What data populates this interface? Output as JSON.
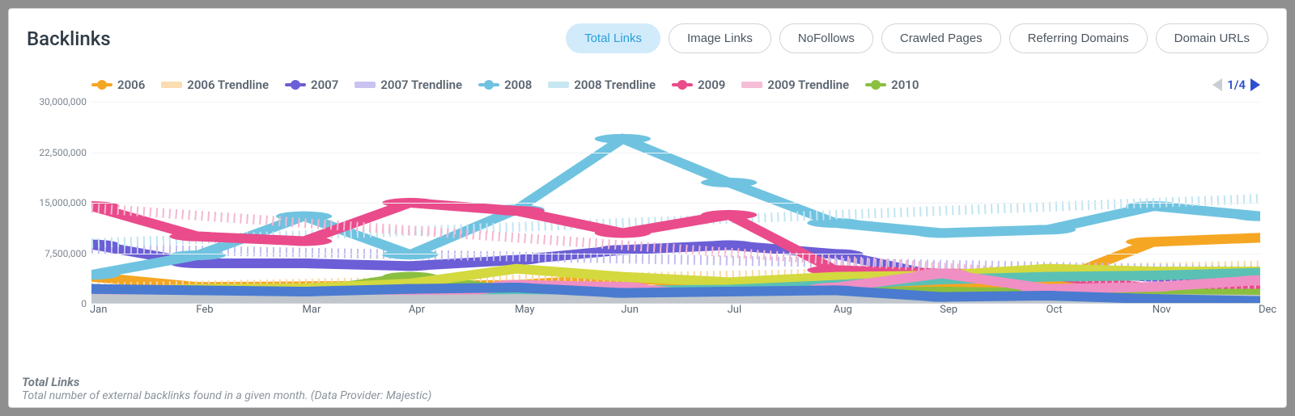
{
  "title": "Backlinks",
  "tabs": [
    {
      "label": "Total Links",
      "active": true
    },
    {
      "label": "Image Links",
      "active": false
    },
    {
      "label": "NoFollows",
      "active": false
    },
    {
      "label": "Crawled Pages",
      "active": false
    },
    {
      "label": "Referring Domains",
      "active": false
    },
    {
      "label": "Domain URLs",
      "active": false
    }
  ],
  "pager": {
    "label": "1/4"
  },
  "footer": {
    "title": "Total Links",
    "desc": "Total number of external backlinks found in a given month. (Data Provider: Majestic)"
  },
  "chart": {
    "type": "line",
    "background_color": "#ffffff",
    "grid_color": "#f0f2f4",
    "axis_color": "#d0d4d9",
    "label_fontsize": 13,
    "tick_fontsize": 12,
    "line_width": 3,
    "marker_radius": 6,
    "x_categories": [
      "Jan",
      "Feb",
      "Mar",
      "Apr",
      "May",
      "Jun",
      "Jul",
      "Aug",
      "Sep",
      "Oct",
      "Nov",
      "Dec"
    ],
    "y_ticks": [
      0,
      7500000,
      15000000,
      22500000,
      30000000
    ],
    "y_tick_labels": [
      "0",
      "7,500,000",
      "15,000,000",
      "22,500,000",
      "30,000,000"
    ],
    "ylim": [
      0,
      30000000
    ],
    "legend": [
      {
        "label": "2006",
        "color": "#f5a623",
        "style": "solid",
        "marker": true
      },
      {
        "label": "2006 Trendline",
        "color": "#f9d9a8",
        "style": "dotted",
        "marker": false
      },
      {
        "label": "2007",
        "color": "#6b5ed6",
        "style": "solid",
        "marker": true
      },
      {
        "label": "2007 Trendline",
        "color": "#c3bdf0",
        "style": "dotted",
        "marker": false
      },
      {
        "label": "2008",
        "color": "#6fc3e0",
        "style": "solid",
        "marker": true
      },
      {
        "label": "2008 Trendline",
        "color": "#c1e5f2",
        "style": "dotted",
        "marker": false
      },
      {
        "label": "2009",
        "color": "#ea4b8b",
        "style": "solid",
        "marker": true
      },
      {
        "label": "2009 Trendline",
        "color": "#f4b6d1",
        "style": "dotted",
        "marker": false
      },
      {
        "label": "2010",
        "color": "#8bbf3f",
        "style": "solid",
        "marker": true
      }
    ],
    "series": [
      {
        "name": "2006",
        "color": "#f5a623",
        "style": "solid",
        "marker": true,
        "values": [
          4000000,
          2500000,
          2600000,
          2700000,
          2800000,
          3800000,
          2900000,
          2500000,
          2700000,
          3000000,
          9200000,
          9800000
        ]
      },
      {
        "name": "2006 Trendline",
        "color": "#f9d9a8",
        "style": "dotted",
        "marker": false,
        "values": [
          2400000,
          2700000,
          3000000,
          3300000,
          3600000,
          3900000,
          4200000,
          4500000,
          4800000,
          5100000,
          5400000,
          5700000
        ]
      },
      {
        "name": "2007",
        "color": "#6b5ed6",
        "style": "solid",
        "marker": true,
        "values": [
          8800000,
          6000000,
          6000000,
          5600000,
          6500000,
          8000000,
          8700000,
          7400000,
          4000000,
          4800000,
          4000000,
          4600000
        ]
      },
      {
        "name": "2007 Trendline",
        "color": "#c3bdf0",
        "style": "dotted",
        "marker": false,
        "values": [
          8200000,
          7900000,
          7600000,
          7300000,
          7000000,
          6700000,
          6400000,
          6100000,
          5800000,
          5500000,
          5200000,
          4900000
        ]
      },
      {
        "name": "2008",
        "color": "#6fc3e0",
        "style": "solid",
        "marker": true,
        "values": [
          4300000,
          7200000,
          13000000,
          7300000,
          14000000,
          24500000,
          18000000,
          12000000,
          10500000,
          11000000,
          14500000,
          13000000
        ]
      },
      {
        "name": "2008 Trendline",
        "color": "#c1e5f2",
        "style": "dotted",
        "marker": false,
        "values": [
          9000000,
          9600000,
          10200000,
          10800000,
          11400000,
          12000000,
          12600000,
          13200000,
          13800000,
          14400000,
          15000000,
          15600000
        ]
      },
      {
        "name": "2009",
        "color": "#ea4b8b",
        "style": "solid",
        "marker": true,
        "values": [
          14500000,
          10000000,
          9300000,
          15000000,
          13800000,
          10500000,
          13200000,
          5000000,
          4500000,
          4300000,
          2200000,
          2000000
        ]
      },
      {
        "name": "2009 Trendline",
        "color": "#f4b6d1",
        "style": "dotted",
        "marker": false,
        "values": [
          14200000,
          13100000,
          12000000,
          10900000,
          9800000,
          8700000,
          7600000,
          6500000,
          5400000,
          4300000,
          3200000,
          2100000
        ]
      },
      {
        "name": "2010",
        "color": "#8bbf3f",
        "style": "solid",
        "marker": true,
        "values": [
          1400000,
          1500000,
          1600000,
          4000000,
          1800000,
          1700000,
          1600000,
          1700000,
          1800000,
          1600000,
          1500000,
          1500000
        ]
      },
      {
        "name": "extra-yellowgreen",
        "color": "#d4d93f",
        "style": "solid",
        "marker": false,
        "values": [
          1800000,
          2200000,
          2300000,
          3000000,
          5200000,
          4000000,
          3200000,
          4000000,
          4200000,
          5200000,
          4800000,
          4800000
        ]
      },
      {
        "name": "extra-teal",
        "color": "#5bc1b4",
        "style": "solid",
        "marker": false,
        "values": [
          1200000,
          1400000,
          1500000,
          1700000,
          1800000,
          2000000,
          2100000,
          2800000,
          3600000,
          4000000,
          4200000,
          4600000
        ]
      },
      {
        "name": "extra-pink",
        "color": "#f08fc4",
        "style": "solid",
        "marker": true,
        "values": [
          900000,
          800000,
          700000,
          800000,
          2800000,
          2500000,
          700000,
          2400000,
          4500000,
          2200000,
          2500000,
          3500000
        ]
      },
      {
        "name": "extra-grey",
        "color": "#c0c6cc",
        "style": "solid",
        "marker": true,
        "values": [
          700000,
          600000,
          700000,
          600000,
          700000,
          600000,
          700000,
          600000,
          700000,
          600000,
          700000,
          600000
        ]
      },
      {
        "name": "extra-blue",
        "color": "#4a7bd0",
        "style": "solid",
        "marker": true,
        "values": [
          2200000,
          2000000,
          1800000,
          2200000,
          2400000,
          1600000,
          1800000,
          2000000,
          1000000,
          1200000,
          700000,
          400000
        ]
      }
    ]
  }
}
